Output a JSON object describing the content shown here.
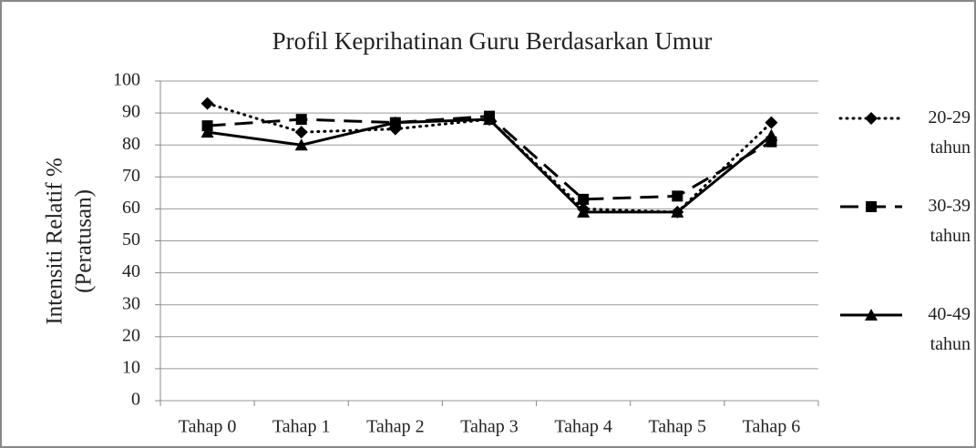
{
  "chart_data": {
    "type": "line",
    "title": "Profil Keprihatinan Guru Berdasarkan Umur",
    "y_label": [
      "Intensiti Relatif  %",
      "(Peratusan)"
    ],
    "categories": [
      "Tahap 0",
      "Tahap 1",
      "Tahap 2",
      "Tahap 3",
      "Tahap 4",
      "Tahap 5",
      "Tahap 6"
    ],
    "series": [
      {
        "name": "20-29 tahun",
        "color": "#000000",
        "style": "dotted",
        "marker": "diamond",
        "values": [
          93,
          84,
          85,
          88,
          60,
          59,
          87
        ]
      },
      {
        "name": "30-39 tahun",
        "color": "#000000",
        "style": "dashed",
        "marker": "square",
        "values": [
          86,
          88,
          87,
          89,
          63,
          64,
          81
        ]
      },
      {
        "name": "40-49 tahun",
        "color": "#000000",
        "style": "solid",
        "marker": "triangle",
        "values": [
          84,
          80,
          87,
          88,
          59,
          59,
          83
        ]
      }
    ],
    "ylim": [
      0,
      100
    ],
    "yticks": [
      0,
      10,
      20,
      30,
      40,
      50,
      60,
      70,
      80,
      90,
      100
    ],
    "grid": true,
    "legend": "right"
  }
}
